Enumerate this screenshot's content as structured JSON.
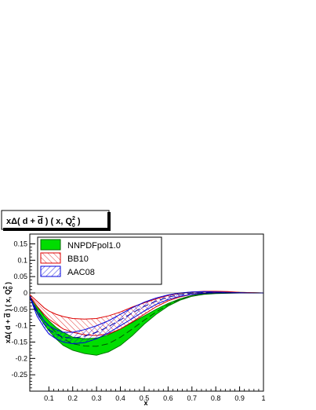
{
  "chart_data": {
    "type": "area",
    "title": "xΔ( d + d̄ ) ( x, Q₀² )",
    "title_main": "xΔ( d + ",
    "title_d": "d",
    "title_mid": " ) ( x, Q",
    "title_sup": "2",
    "title_sub": "0",
    "title_end": " )",
    "ylabel": "xΔ( d + d̄ ) ( x, Q₀² )",
    "ylabel_main": "xΔ( d + ",
    "ylabel_d": "d",
    "ylabel_mid": " ) ( x, Q",
    "ylabel_sup": "2",
    "ylabel_sub": "0",
    "ylabel_end": " )",
    "xlabel": "x",
    "xlim": [
      0.02,
      1.0
    ],
    "ylim": [
      -0.3,
      0.18
    ],
    "x_ticks": [
      {
        "v": 0.1,
        "label": "0.1"
      },
      {
        "v": 0.2,
        "label": "0.2"
      },
      {
        "v": 0.3,
        "label": "0.3"
      },
      {
        "v": 0.4,
        "label": "0.4"
      },
      {
        "v": 0.5,
        "label": "0.5"
      },
      {
        "v": 0.6,
        "label": "0.6"
      },
      {
        "v": 0.7,
        "label": "0.7"
      },
      {
        "v": 0.8,
        "label": "0.8"
      },
      {
        "v": 0.9,
        "label": "0.9"
      },
      {
        "v": 1.0,
        "label": "1"
      }
    ],
    "y_ticks": [
      {
        "v": 0.15,
        "label": "0.15"
      },
      {
        "v": 0.1,
        "label": "0.1"
      },
      {
        "v": 0.05,
        "label": "0.05"
      },
      {
        "v": 0.0,
        "label": "0"
      },
      {
        "v": -0.05,
        "label": "-0.05"
      },
      {
        "v": -0.1,
        "label": "-0.1"
      },
      {
        "v": -0.15,
        "label": "-0.15"
      },
      {
        "v": -0.2,
        "label": "-0.2"
      },
      {
        "v": -0.25,
        "label": "-0.25"
      }
    ],
    "legend_position": "top-left",
    "series": [
      {
        "name": "NNPDFpol1.0",
        "style": "solid-fill",
        "color": "#00dd00",
        "edge": "#006600",
        "x": [
          0.02,
          0.05,
          0.08,
          0.1,
          0.13,
          0.16,
          0.2,
          0.25,
          0.3,
          0.35,
          0.4,
          0.45,
          0.5,
          0.55,
          0.6,
          0.65,
          0.7,
          0.75,
          0.8,
          0.85,
          0.9,
          0.95,
          1.0
        ],
        "upper": [
          -0.01,
          -0.04,
          -0.07,
          -0.085,
          -0.105,
          -0.12,
          -0.135,
          -0.14,
          -0.138,
          -0.128,
          -0.11,
          -0.09,
          -0.07,
          -0.05,
          -0.032,
          -0.018,
          -0.008,
          -0.002,
          0.002,
          0.003,
          0.002,
          0.001,
          0.0
        ],
        "lower": [
          -0.015,
          -0.06,
          -0.095,
          -0.115,
          -0.14,
          -0.16,
          -0.175,
          -0.185,
          -0.19,
          -0.18,
          -0.16,
          -0.13,
          -0.095,
          -0.065,
          -0.04,
          -0.022,
          -0.01,
          -0.004,
          -0.002,
          -0.001,
          0.0,
          0.0,
          0.0
        ],
        "central": [
          -0.012,
          -0.05,
          -0.085,
          -0.1,
          -0.12,
          -0.14,
          -0.155,
          -0.162,
          -0.163,
          -0.155,
          -0.135,
          -0.11,
          -0.083,
          -0.058,
          -0.036,
          -0.02,
          -0.009,
          -0.003,
          0.0,
          0.001,
          0.001,
          0.0,
          0.0
        ]
      },
      {
        "name": "BB10",
        "style": "hatch",
        "color": "#dd0000",
        "x": [
          0.02,
          0.05,
          0.08,
          0.1,
          0.13,
          0.16,
          0.2,
          0.25,
          0.3,
          0.35,
          0.4,
          0.45,
          0.5,
          0.55,
          0.6,
          0.65,
          0.7,
          0.75,
          0.8,
          0.85,
          0.9,
          0.95,
          1.0
        ],
        "upper": [
          -0.005,
          -0.025,
          -0.045,
          -0.055,
          -0.065,
          -0.072,
          -0.078,
          -0.08,
          -0.078,
          -0.07,
          -0.058,
          -0.043,
          -0.03,
          -0.018,
          -0.008,
          -0.001,
          0.003,
          0.005,
          0.005,
          0.004,
          0.002,
          0.001,
          0.0
        ],
        "lower": [
          -0.01,
          -0.04,
          -0.065,
          -0.08,
          -0.095,
          -0.11,
          -0.12,
          -0.128,
          -0.13,
          -0.125,
          -0.11,
          -0.088,
          -0.065,
          -0.042,
          -0.024,
          -0.012,
          -0.004,
          0.0,
          0.002,
          0.002,
          0.001,
          0.0,
          0.0
        ]
      },
      {
        "name": "AAC08",
        "style": "hatch",
        "color": "#0000dd",
        "x": [
          0.02,
          0.05,
          0.08,
          0.1,
          0.13,
          0.16,
          0.2,
          0.25,
          0.3,
          0.35,
          0.4,
          0.45,
          0.5,
          0.55,
          0.6,
          0.65,
          0.7,
          0.75,
          0.8,
          0.85,
          0.9,
          0.95,
          1.0
        ],
        "upper": [
          -0.01,
          -0.055,
          -0.085,
          -0.1,
          -0.112,
          -0.12,
          -0.12,
          -0.112,
          -0.1,
          -0.085,
          -0.065,
          -0.045,
          -0.028,
          -0.015,
          -0.006,
          0.0,
          0.003,
          0.004,
          0.003,
          0.002,
          0.001,
          0.0,
          0.0
        ],
        "lower": [
          -0.012,
          -0.07,
          -0.105,
          -0.125,
          -0.14,
          -0.15,
          -0.155,
          -0.152,
          -0.14,
          -0.122,
          -0.1,
          -0.078,
          -0.055,
          -0.035,
          -0.02,
          -0.01,
          -0.004,
          -0.001,
          0.0,
          0.0,
          0.0,
          0.0,
          0.0
        ],
        "central": [
          -0.011,
          -0.062,
          -0.095,
          -0.112,
          -0.126,
          -0.135,
          -0.138,
          -0.132,
          -0.12,
          -0.103,
          -0.082,
          -0.061,
          -0.041,
          -0.025,
          -0.013,
          -0.005,
          -0.0005,
          0.0015,
          0.0015,
          0.001,
          0.0005,
          0.0,
          0.0
        ]
      }
    ]
  }
}
